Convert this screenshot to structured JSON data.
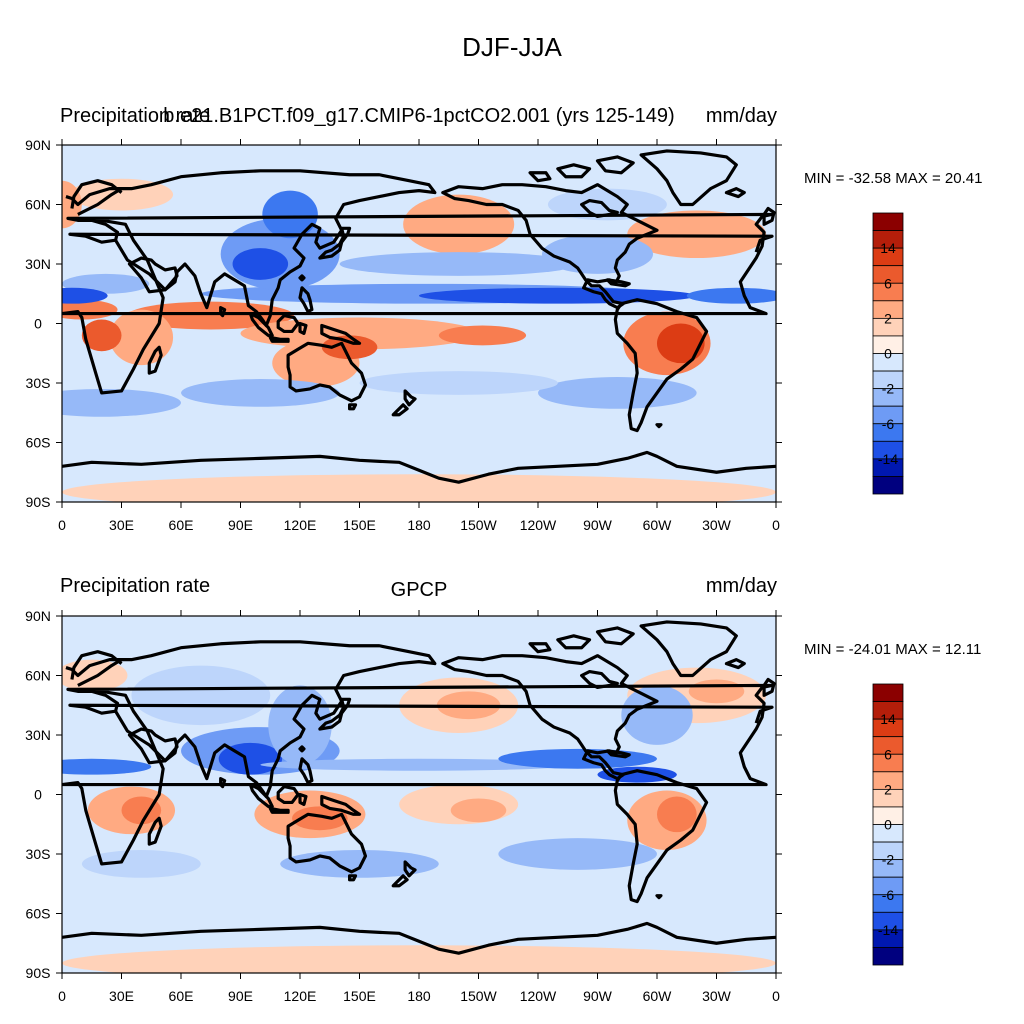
{
  "title": "DJF-JJA",
  "panels": [
    {
      "left_title": "Precipitation rate",
      "center_title": "b.e21.B1PCT.f09_g17.CMIP6-1pctCO2.001 (yrs 125-149)",
      "units": "mm/day",
      "stats_text": "MIN = -32.58 MAX =  20.41"
    },
    {
      "left_title": "Precipitation rate",
      "center_title": "GPCP",
      "units": "mm/day",
      "stats_text": "MIN = -24.01 MAX =  12.11"
    }
  ],
  "lat_ticks": [
    "90N",
    "60N",
    "30N",
    "0",
    "30S",
    "60S",
    "90S"
  ],
  "lon_ticks": [
    "0",
    "30E",
    "60E",
    "90E",
    "120E",
    "150E",
    "180",
    "150W",
    "120W",
    "90W",
    "60W",
    "30W",
    "0"
  ],
  "colorbar": {
    "colors": [
      "#00007f",
      "#0018b0",
      "#1e50e6",
      "#3c78f0",
      "#6e9bf5",
      "#96b9f8",
      "#bdd5fb",
      "#d7e8fd",
      "#fff0e6",
      "#ffd2b9",
      "#ffaa82",
      "#f87d50",
      "#eb5a2d",
      "#dc3c14",
      "#b41e0a",
      "#8b0000"
    ],
    "labels": [
      "-14",
      "-6",
      "-2",
      "0",
      "2",
      "6",
      "14"
    ]
  },
  "chart_data": [
    {
      "type": "heatmap",
      "title": "DJF-JJA",
      "left_title": "Precipitation rate",
      "center_title": "b.e21.B1PCT.f09_g17.CMIP6-1pctCO2.001 (yrs 125-149)",
      "units": "mm/day",
      "x_ticks": [
        "0",
        "30E",
        "60E",
        "90E",
        "120E",
        "150E",
        "180",
        "150W",
        "120W",
        "90W",
        "60W",
        "30W",
        "0"
      ],
      "y_ticks": [
        "90N",
        "60N",
        "30N",
        "0",
        "30S",
        "60S",
        "90S"
      ],
      "min": -32.58,
      "max": 20.41,
      "colorbar_labels": [
        "-14",
        "-6",
        "-2",
        "0",
        "2",
        "6",
        "14"
      ]
    },
    {
      "type": "heatmap",
      "title": "DJF-JJA",
      "left_title": "Precipitation rate",
      "center_title": "GPCP",
      "units": "mm/day",
      "x_ticks": [
        "0",
        "30E",
        "60E",
        "90E",
        "120E",
        "150E",
        "180",
        "150W",
        "120W",
        "90W",
        "60W",
        "30W",
        "0"
      ],
      "y_ticks": [
        "90N",
        "60N",
        "30N",
        "0",
        "30S",
        "60S",
        "90S"
      ],
      "min": -24.01,
      "max": 12.11,
      "colorbar_labels": [
        "-14",
        "-6",
        "-2",
        "0",
        "2",
        "6",
        "14"
      ]
    }
  ]
}
